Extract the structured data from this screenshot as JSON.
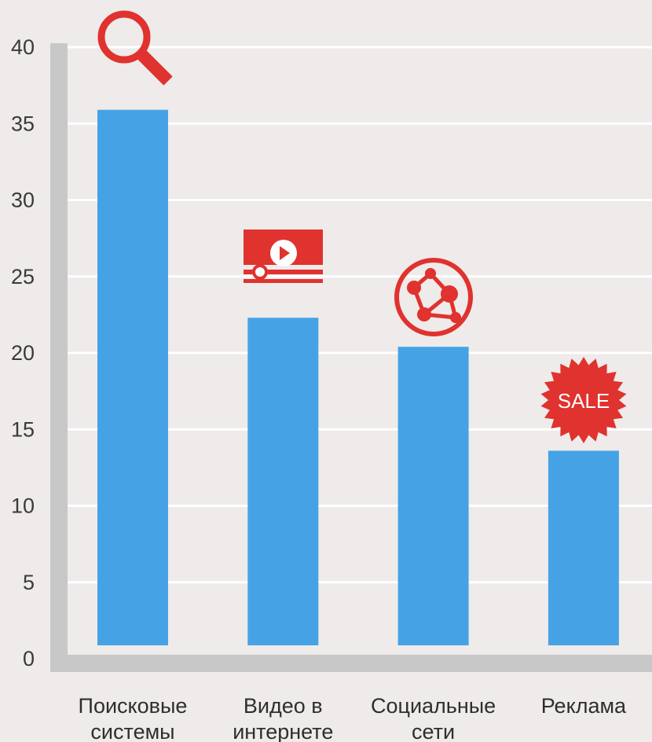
{
  "chart_data": {
    "type": "bar",
    "title": "",
    "xlabel": "",
    "ylabel": "",
    "ylim": [
      0,
      40
    ],
    "yticks": [
      0,
      5,
      10,
      15,
      20,
      25,
      30,
      35,
      40
    ],
    "grid": true,
    "categories": [
      [
        "Поисковые",
        "системы"
      ],
      [
        "Видео в",
        "интернете"
      ],
      [
        "Социальные",
        "сети"
      ],
      [
        "Реклама"
      ]
    ],
    "values": [
      35.9,
      22.3,
      20.4,
      13.6
    ],
    "icons": [
      "search-icon",
      "video-player-icon",
      "network-globe-icon",
      "sale-badge-icon"
    ],
    "sale_badge_text": "SALE",
    "colors": {
      "bar": "#45a3e5",
      "icon": "#e0322e",
      "grid": "#ffffff",
      "axis": "#c8c8c8",
      "background": "#eeebea"
    }
  }
}
